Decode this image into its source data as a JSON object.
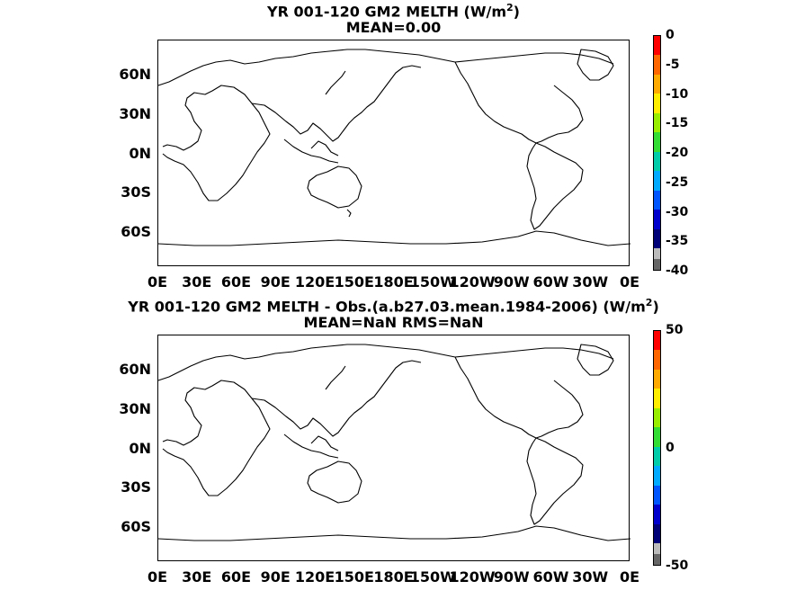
{
  "panels": [
    {
      "title_line1": "YR 001-120 GM2  MELTH (W/m",
      "title_sup": "2",
      "title_close": ")",
      "title_line2": "MEAN=0.00",
      "colorbar_ticks": [
        "0",
        "-5",
        "-10",
        "-15",
        "-20",
        "-25",
        "-30",
        "-35",
        "-40"
      ]
    },
    {
      "title_line1": "YR 001-120 GM2 MELTH - Obs.(a.b27.03.mean.1984-2006) (W/m",
      "title_sup": "2",
      "title_close": ")",
      "title_line2": "MEAN=NaN RMS=NaN",
      "colorbar_ticks": [
        "50",
        "0",
        "-50"
      ]
    }
  ],
  "lat_labels": [
    "60N",
    "30N",
    "0N",
    "30S",
    "60S"
  ],
  "lon_labels": [
    "0E",
    "30E",
    "60E",
    "90E",
    "120E",
    "150E",
    "180E",
    "150W",
    "120W",
    "90W",
    "60W",
    "30W",
    "0E"
  ],
  "colors": {
    "scale": [
      "#ff0000",
      "#ff6600",
      "#ffaa00",
      "#ffee00",
      "#99ee00",
      "#33dd33",
      "#00ccaa",
      "#00aaff",
      "#0055ff",
      "#0000cc",
      "#000077"
    ],
    "out_of_range_light": "#bbbbbb",
    "out_of_range_dark": "#666666"
  }
}
